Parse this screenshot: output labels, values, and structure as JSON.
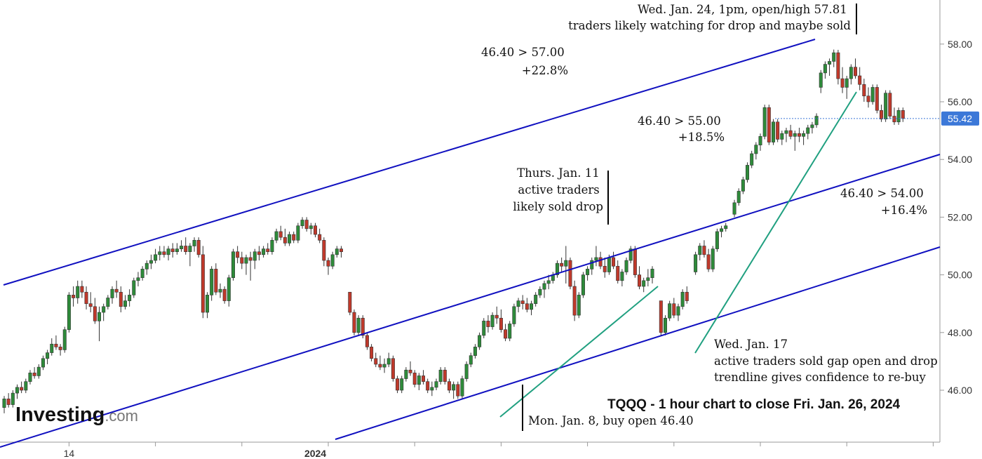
{
  "chart_data": {
    "type": "candlestick",
    "title": "TQQQ - 1 hour chart to close Fri. Jan. 26, 2024",
    "xlabel": "",
    "ylabel": "",
    "ylim": [
      44.5,
      59.0
    ],
    "y_ticks": [
      "46.00",
      "48.00",
      "50.00",
      "52.00",
      "54.00",
      "56.00",
      "58.00"
    ],
    "x_ticks": [
      {
        "label": "14",
        "bold": false,
        "index": 15
      },
      {
        "label": "2024",
        "bold": true,
        "index": 72
      }
    ],
    "last_price": {
      "value": 55.42,
      "label": "55.42",
      "color": "#3c78d8"
    },
    "colors": {
      "up": "#2e8b3a",
      "down": "#c0392b",
      "channel": "#1010c0",
      "trendline": "#20a080"
    },
    "candles": [
      [
        45.4,
        45.8,
        45.2,
        45.7
      ],
      [
        45.7,
        45.9,
        45.4,
        45.5
      ],
      [
        45.5,
        46.0,
        45.4,
        45.9
      ],
      [
        45.9,
        46.2,
        45.7,
        46.1
      ],
      [
        46.1,
        46.3,
        45.9,
        46.0
      ],
      [
        46.0,
        46.4,
        45.9,
        46.3
      ],
      [
        46.3,
        46.7,
        46.2,
        46.6
      ],
      [
        46.6,
        46.8,
        46.4,
        46.5
      ],
      [
        46.5,
        46.9,
        46.4,
        46.8
      ],
      [
        46.8,
        47.2,
        46.7,
        47.1
      ],
      [
        47.1,
        47.4,
        46.9,
        47.3
      ],
      [
        47.3,
        47.8,
        47.2,
        47.6
      ],
      [
        47.6,
        47.9,
        47.4,
        47.5
      ],
      [
        47.5,
        47.6,
        47.2,
        47.4
      ],
      [
        47.4,
        48.2,
        47.3,
        48.1
      ],
      [
        48.1,
        49.4,
        48.0,
        49.3
      ],
      [
        49.3,
        49.6,
        48.9,
        49.2
      ],
      [
        49.2,
        49.8,
        49.0,
        49.6
      ],
      [
        49.6,
        49.8,
        49.2,
        49.4
      ],
      [
        49.4,
        49.6,
        48.8,
        49.0
      ],
      [
        49.0,
        49.4,
        48.7,
        48.9
      ],
      [
        48.9,
        49.2,
        48.3,
        48.4
      ],
      [
        48.4,
        48.9,
        47.7,
        48.7
      ],
      [
        48.7,
        49.0,
        48.4,
        48.9
      ],
      [
        48.9,
        49.3,
        48.8,
        49.2
      ],
      [
        49.2,
        49.6,
        49.0,
        49.5
      ],
      [
        49.5,
        49.8,
        49.2,
        49.4
      ],
      [
        49.4,
        49.6,
        48.7,
        48.9
      ],
      [
        48.9,
        49.3,
        48.8,
        49.1
      ],
      [
        49.1,
        49.5,
        48.9,
        49.3
      ],
      [
        49.3,
        49.9,
        49.2,
        49.8
      ],
      [
        49.8,
        50.1,
        49.6,
        49.9
      ],
      [
        49.9,
        50.3,
        49.8,
        50.2
      ],
      [
        50.2,
        50.5,
        50.0,
        50.4
      ],
      [
        50.4,
        50.7,
        50.2,
        50.5
      ],
      [
        50.5,
        50.9,
        50.4,
        50.7
      ],
      [
        50.7,
        51.0,
        50.5,
        50.8
      ],
      [
        50.8,
        51.0,
        50.6,
        50.7
      ],
      [
        50.7,
        51.0,
        50.5,
        50.9
      ],
      [
        50.9,
        51.1,
        50.6,
        50.8
      ],
      [
        50.8,
        51.1,
        50.7,
        50.9
      ],
      [
        50.9,
        51.2,
        50.8,
        51.0
      ],
      [
        51.0,
        51.3,
        50.7,
        50.8
      ],
      [
        50.8,
        51.1,
        50.3,
        51.0
      ],
      [
        51.0,
        51.3,
        50.8,
        51.2
      ],
      [
        51.2,
        51.3,
        50.6,
        50.7
      ],
      [
        50.7,
        51.0,
        48.5,
        48.7
      ],
      [
        48.7,
        49.4,
        48.5,
        49.3
      ],
      [
        49.3,
        50.3,
        49.1,
        50.2
      ],
      [
        50.2,
        50.4,
        49.3,
        49.4
      ],
      [
        49.4,
        49.7,
        49.2,
        49.5
      ],
      [
        49.5,
        49.6,
        49.0,
        49.1
      ],
      [
        49.1,
        50.0,
        48.9,
        49.9
      ],
      [
        49.9,
        50.9,
        49.8,
        50.8
      ],
      [
        50.8,
        51.0,
        50.4,
        50.6
      ],
      [
        50.6,
        50.8,
        50.2,
        50.4
      ],
      [
        50.4,
        50.7,
        50.0,
        50.6
      ],
      [
        50.6,
        50.8,
        49.8,
        50.5
      ],
      [
        50.5,
        50.9,
        50.2,
        50.8
      ],
      [
        50.8,
        51.0,
        50.5,
        50.7
      ],
      [
        50.7,
        51.0,
        50.6,
        50.9
      ],
      [
        50.9,
        51.1,
        50.7,
        50.8
      ],
      [
        50.8,
        51.3,
        50.7,
        51.2
      ],
      [
        51.2,
        51.6,
        51.1,
        51.5
      ],
      [
        51.5,
        51.7,
        51.2,
        51.3
      ],
      [
        51.3,
        51.6,
        51.0,
        51.1
      ],
      [
        51.1,
        51.5,
        51.0,
        51.4
      ],
      [
        51.4,
        51.5,
        51.1,
        51.2
      ],
      [
        51.2,
        51.8,
        51.1,
        51.7
      ],
      [
        51.7,
        52.0,
        51.6,
        51.9
      ],
      [
        51.9,
        52.0,
        51.5,
        51.6
      ],
      [
        51.6,
        51.8,
        51.4,
        51.7
      ],
      [
        51.7,
        51.8,
        51.3,
        51.4
      ],
      [
        51.4,
        51.6,
        51.1,
        51.2
      ],
      [
        51.2,
        51.3,
        50.3,
        50.5
      ],
      [
        50.5,
        50.6,
        50.0,
        50.3
      ],
      [
        50.3,
        50.8,
        50.2,
        50.7
      ],
      [
        50.7,
        51.0,
        50.6,
        50.9
      ],
      [
        50.9,
        51.0,
        50.6,
        50.8
      ],
      null,
      [
        49.4,
        49.4,
        48.6,
        48.7
      ],
      [
        48.7,
        48.8,
        47.9,
        48.0
      ],
      [
        48.0,
        48.6,
        47.9,
        48.5
      ],
      [
        48.5,
        48.6,
        47.8,
        47.9
      ],
      [
        47.9,
        48.0,
        47.4,
        47.5
      ],
      [
        47.5,
        47.6,
        47.0,
        47.1
      ],
      [
        47.1,
        47.3,
        46.8,
        46.9
      ],
      [
        46.9,
        47.2,
        46.7,
        46.8
      ],
      [
        46.8,
        47.1,
        46.6,
        46.9
      ],
      [
        46.9,
        47.3,
        46.8,
        47.1
      ],
      [
        47.1,
        47.2,
        46.3,
        46.4
      ],
      [
        46.4,
        46.5,
        45.9,
        46.0
      ],
      [
        46.0,
        46.5,
        45.9,
        46.4
      ],
      [
        46.4,
        46.8,
        46.3,
        46.7
      ],
      [
        46.7,
        47.0,
        46.5,
        46.6
      ],
      [
        46.6,
        46.7,
        46.1,
        46.2
      ],
      [
        46.2,
        46.6,
        46.0,
        46.5
      ],
      [
        46.5,
        46.7,
        46.2,
        46.3
      ],
      [
        46.3,
        46.4,
        45.9,
        46.0
      ],
      [
        46.0,
        46.3,
        45.8,
        46.1
      ],
      [
        46.1,
        46.4,
        46.0,
        46.3
      ],
      [
        46.3,
        46.8,
        46.2,
        46.7
      ],
      [
        46.7,
        46.8,
        46.2,
        46.3
      ],
      [
        46.3,
        46.4,
        45.9,
        46.0
      ],
      [
        46.0,
        46.3,
        45.7,
        46.2
      ],
      [
        46.2,
        46.3,
        45.7,
        45.8
      ],
      [
        45.8,
        46.5,
        45.7,
        46.4
      ],
      [
        46.4,
        47.0,
        46.3,
        46.9
      ],
      [
        46.9,
        47.3,
        46.8,
        47.2
      ],
      [
        47.2,
        47.6,
        47.1,
        47.5
      ],
      [
        47.5,
        48.0,
        47.4,
        47.9
      ],
      [
        47.9,
        48.5,
        47.8,
        48.4
      ],
      [
        48.4,
        48.6,
        48.0,
        48.2
      ],
      [
        48.2,
        48.7,
        48.1,
        48.6
      ],
      [
        48.6,
        48.9,
        48.3,
        48.5
      ],
      [
        48.5,
        48.8,
        48.0,
        48.1
      ],
      [
        48.1,
        48.3,
        47.7,
        47.8
      ],
      [
        47.8,
        48.4,
        47.7,
        48.3
      ],
      [
        48.3,
        49.0,
        48.2,
        48.9
      ],
      [
        48.9,
        49.2,
        48.7,
        49.1
      ],
      [
        49.1,
        49.3,
        48.8,
        49.0
      ],
      [
        49.0,
        49.2,
        48.7,
        48.8
      ],
      [
        48.8,
        49.1,
        48.6,
        49.0
      ],
      [
        49.0,
        49.4,
        48.9,
        49.3
      ],
      [
        49.3,
        49.6,
        49.2,
        49.5
      ],
      [
        49.5,
        49.8,
        49.2,
        49.7
      ],
      [
        49.7,
        50.0,
        49.5,
        49.8
      ],
      [
        49.8,
        50.1,
        49.7,
        50.0
      ],
      [
        50.0,
        50.5,
        49.9,
        50.4
      ],
      [
        50.4,
        50.6,
        50.1,
        50.3
      ],
      [
        50.3,
        51.0,
        49.7,
        50.5
      ],
      [
        50.5,
        50.6,
        49.5,
        49.6
      ],
      [
        49.6,
        49.8,
        48.4,
        48.6
      ],
      [
        48.6,
        49.4,
        48.5,
        49.3
      ],
      [
        49.3,
        50.1,
        49.2,
        50.0
      ],
      [
        50.0,
        50.3,
        49.8,
        50.2
      ],
      [
        50.2,
        50.6,
        50.0,
        50.5
      ],
      [
        50.5,
        51.0,
        50.3,
        50.6
      ],
      [
        50.6,
        50.8,
        50.2,
        50.3
      ],
      [
        50.3,
        50.6,
        49.9,
        50.1
      ],
      [
        50.1,
        50.7,
        50.0,
        50.6
      ],
      [
        50.6,
        50.8,
        50.2,
        50.3
      ],
      [
        50.3,
        50.5,
        49.7,
        49.8
      ],
      [
        49.8,
        50.2,
        49.6,
        50.1
      ],
      [
        50.1,
        50.6,
        50.0,
        50.5
      ],
      [
        50.5,
        51.0,
        50.4,
        50.9
      ],
      [
        50.9,
        51.0,
        49.9,
        50.0
      ],
      [
        50.0,
        50.3,
        49.5,
        49.6
      ],
      [
        49.6,
        49.9,
        49.4,
        49.8
      ],
      [
        49.8,
        50.2,
        49.6,
        49.9
      ],
      [
        49.9,
        50.3,
        49.7,
        50.2
      ],
      null,
      [
        49.1,
        49.1,
        47.9,
        48.0
      ],
      [
        48.0,
        48.6,
        47.9,
        48.5
      ],
      [
        48.5,
        49.1,
        48.4,
        49.0
      ],
      [
        49.0,
        49.2,
        48.5,
        48.6
      ],
      [
        48.6,
        49.0,
        48.4,
        48.9
      ],
      [
        48.9,
        49.5,
        48.8,
        49.4
      ],
      [
        49.4,
        49.6,
        49.0,
        49.1
      ],
      null,
      [
        50.1,
        50.8,
        50.0,
        50.7
      ],
      [
        50.7,
        51.1,
        50.5,
        51.0
      ],
      [
        51.0,
        51.2,
        50.6,
        50.7
      ],
      [
        50.7,
        50.9,
        50.1,
        50.2
      ],
      [
        50.2,
        51.0,
        50.1,
        50.9
      ],
      [
        50.9,
        51.6,
        50.8,
        51.5
      ],
      [
        51.5,
        51.7,
        51.3,
        51.6
      ],
      [
        51.6,
        51.8,
        51.5,
        51.7
      ],
      null,
      [
        52.1,
        52.6,
        52.0,
        52.5
      ],
      [
        52.5,
        53.0,
        52.4,
        52.9
      ],
      [
        52.9,
        53.4,
        52.8,
        53.3
      ],
      [
        53.3,
        53.9,
        53.2,
        53.8
      ],
      [
        53.8,
        54.3,
        53.7,
        54.2
      ],
      [
        54.2,
        54.6,
        54.0,
        54.5
      ],
      [
        54.5,
        54.9,
        54.3,
        54.8
      ],
      [
        54.8,
        55.9,
        54.7,
        55.8
      ],
      [
        55.8,
        55.9,
        54.5,
        54.6
      ],
      [
        54.6,
        55.4,
        54.5,
        55.3
      ],
      [
        55.3,
        55.4,
        54.6,
        54.7
      ],
      [
        54.7,
        55.0,
        54.5,
        54.9
      ],
      [
        54.9,
        55.1,
        54.6,
        55.0
      ],
      [
        55.0,
        55.2,
        54.7,
        54.8
      ],
      [
        54.8,
        55.0,
        54.3,
        54.9
      ],
      [
        54.9,
        55.1,
        54.6,
        54.8
      ],
      [
        54.8,
        55.0,
        54.5,
        54.9
      ],
      [
        54.9,
        55.2,
        54.7,
        55.1
      ],
      [
        55.1,
        55.3,
        54.9,
        55.2
      ],
      [
        55.2,
        55.6,
        55.1,
        55.5
      ],
      [
        56.5,
        57.1,
        56.3,
        57.0
      ],
      [
        57.0,
        57.4,
        56.8,
        57.3
      ],
      [
        57.3,
        57.5,
        56.9,
        57.4
      ],
      [
        57.4,
        57.81,
        57.2,
        57.7
      ],
      [
        57.7,
        57.8,
        56.6,
        56.8
      ],
      [
        56.8,
        57.2,
        56.3,
        56.5
      ],
      [
        56.5,
        56.9,
        56.1,
        56.8
      ],
      [
        56.8,
        57.3,
        56.6,
        57.2
      ],
      [
        57.2,
        57.5,
        56.8,
        56.9
      ],
      [
        56.9,
        57.2,
        56.4,
        56.6
      ],
      [
        56.6,
        56.8,
        56.0,
        56.2
      ],
      [
        56.2,
        56.5,
        55.8,
        56.0
      ],
      [
        56.0,
        56.6,
        55.9,
        56.5
      ],
      [
        56.5,
        56.6,
        55.6,
        55.7
      ],
      [
        55.7,
        55.9,
        55.3,
        55.4
      ],
      [
        55.4,
        56.4,
        55.3,
        56.3
      ],
      [
        56.3,
        56.4,
        55.4,
        55.5
      ],
      [
        55.5,
        55.8,
        55.2,
        55.3
      ],
      [
        55.3,
        55.8,
        55.2,
        55.7
      ],
      [
        55.7,
        55.8,
        55.3,
        55.42
      ]
    ],
    "annotations": [
      {
        "lines": [
          "Wed. Jan. 24, 1pm, open/high 57.81",
          "traders likely watching for drop and maybe sold"
        ],
        "align": "end"
      },
      {
        "lines": [
          "46.40 > 57.00",
          "+22.8%"
        ],
        "align": "end"
      },
      {
        "lines": [
          "46.40 > 55.00",
          "+18.5%"
        ],
        "align": "end"
      },
      {
        "lines": [
          "Thurs. Jan. 11",
          "active traders",
          "likely sold drop"
        ],
        "align": "end"
      },
      {
        "lines": [
          "46.40 > 54.00",
          "+16.4%"
        ],
        "align": "end"
      },
      {
        "lines": [
          "Wed. Jan. 17",
          "active traders sold gap open and drop",
          "trendline gives confidence to re-buy"
        ],
        "align": "start"
      },
      {
        "lines": [
          "Mon. Jan. 8, buy open 46.40"
        ],
        "align": "start"
      }
    ]
  },
  "logo": {
    "brand": "Investing",
    "suffix": ".com"
  }
}
